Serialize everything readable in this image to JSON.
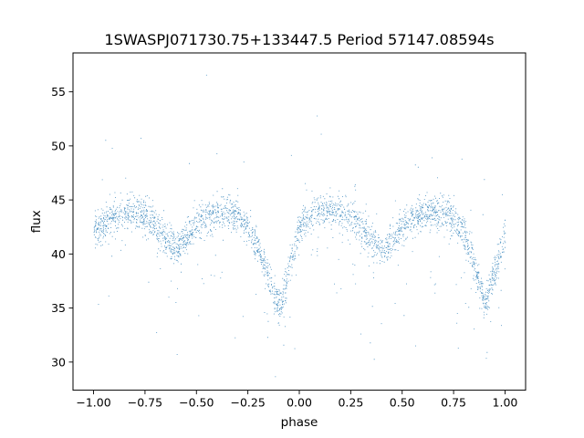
{
  "chart_data": {
    "type": "scatter",
    "title": "1SWASPJ071730.75+133447.5 Period 57147.08594s",
    "xlabel": "phase",
    "ylabel": "flux",
    "xlim": [
      -1.1,
      1.1
    ],
    "ylim": [
      27.4,
      58.6
    ],
    "xticks": [
      -1.0,
      -0.75,
      -0.5,
      -0.25,
      0.0,
      0.25,
      0.5,
      0.75,
      1.0
    ],
    "xtick_labels": [
      "−1.00",
      "−0.75",
      "−0.50",
      "−0.25",
      "0.00",
      "0.25",
      "0.50",
      "0.75",
      "1.00"
    ],
    "yticks": [
      30,
      35,
      40,
      45,
      50,
      55
    ],
    "ytick_labels": [
      "30",
      "35",
      "40",
      "45",
      "50",
      "55"
    ],
    "grid": false,
    "legend": "none",
    "marker_color": "#1f77b4",
    "x_range": [
      -1.0,
      1.0
    ],
    "light_curve_profile": {
      "phase": [
        -1.0,
        -0.95,
        -0.9,
        -0.85,
        -0.8,
        -0.75,
        -0.7,
        -0.65,
        -0.6,
        -0.55,
        -0.5,
        -0.45,
        -0.4,
        -0.35,
        -0.3,
        -0.25,
        -0.2,
        -0.15,
        -0.12,
        -0.1,
        -0.08,
        -0.05,
        0.0,
        0.05,
        0.1,
        0.15,
        0.2,
        0.25,
        0.3,
        0.35,
        0.4,
        0.45,
        0.5,
        0.55,
        0.6,
        0.65,
        0.7,
        0.75,
        0.8,
        0.85,
        0.88,
        0.9,
        0.92,
        0.95,
        1.0
      ],
      "flux": [
        41.8,
        43.0,
        43.6,
        43.9,
        44.0,
        43.7,
        42.8,
        41.3,
        40.5,
        41.5,
        42.8,
        43.5,
        43.8,
        43.9,
        43.6,
        42.3,
        40.5,
        37.8,
        36.0,
        35.3,
        36.0,
        39.0,
        42.5,
        43.6,
        44.0,
        44.1,
        43.9,
        43.5,
        42.5,
        41.3,
        40.5,
        41.2,
        42.5,
        43.3,
        43.7,
        43.9,
        43.8,
        43.4,
        42.0,
        39.0,
        37.0,
        35.3,
        36.5,
        38.5,
        41.8
      ]
    },
    "scatter_total_points": 14000,
    "scatter_outlier_fraction": 0.055,
    "profile_noise_flux": 0.75
  }
}
